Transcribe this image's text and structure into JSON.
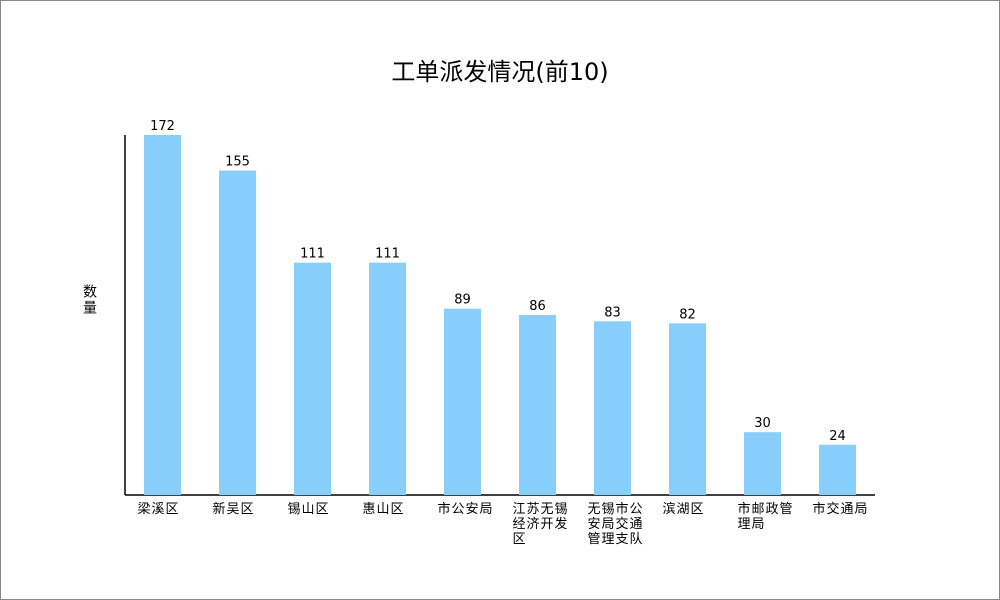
{
  "chart_data": {
    "type": "bar",
    "title": "工单派发情况(前10)",
    "y_label": "数量",
    "categories": [
      "梁溪区",
      "新吴区",
      "锡山区",
      "惠山区",
      "市公安局",
      "江苏无锡经济开发区",
      "无锡市公安局交通管理支队",
      "滨湖区",
      "市邮政管理局",
      "市交通局"
    ],
    "values": [
      172,
      155,
      111,
      111,
      89,
      86,
      83,
      82,
      30,
      24
    ],
    "color": "#87cefa",
    "ylim": [
      0,
      172
    ]
  }
}
